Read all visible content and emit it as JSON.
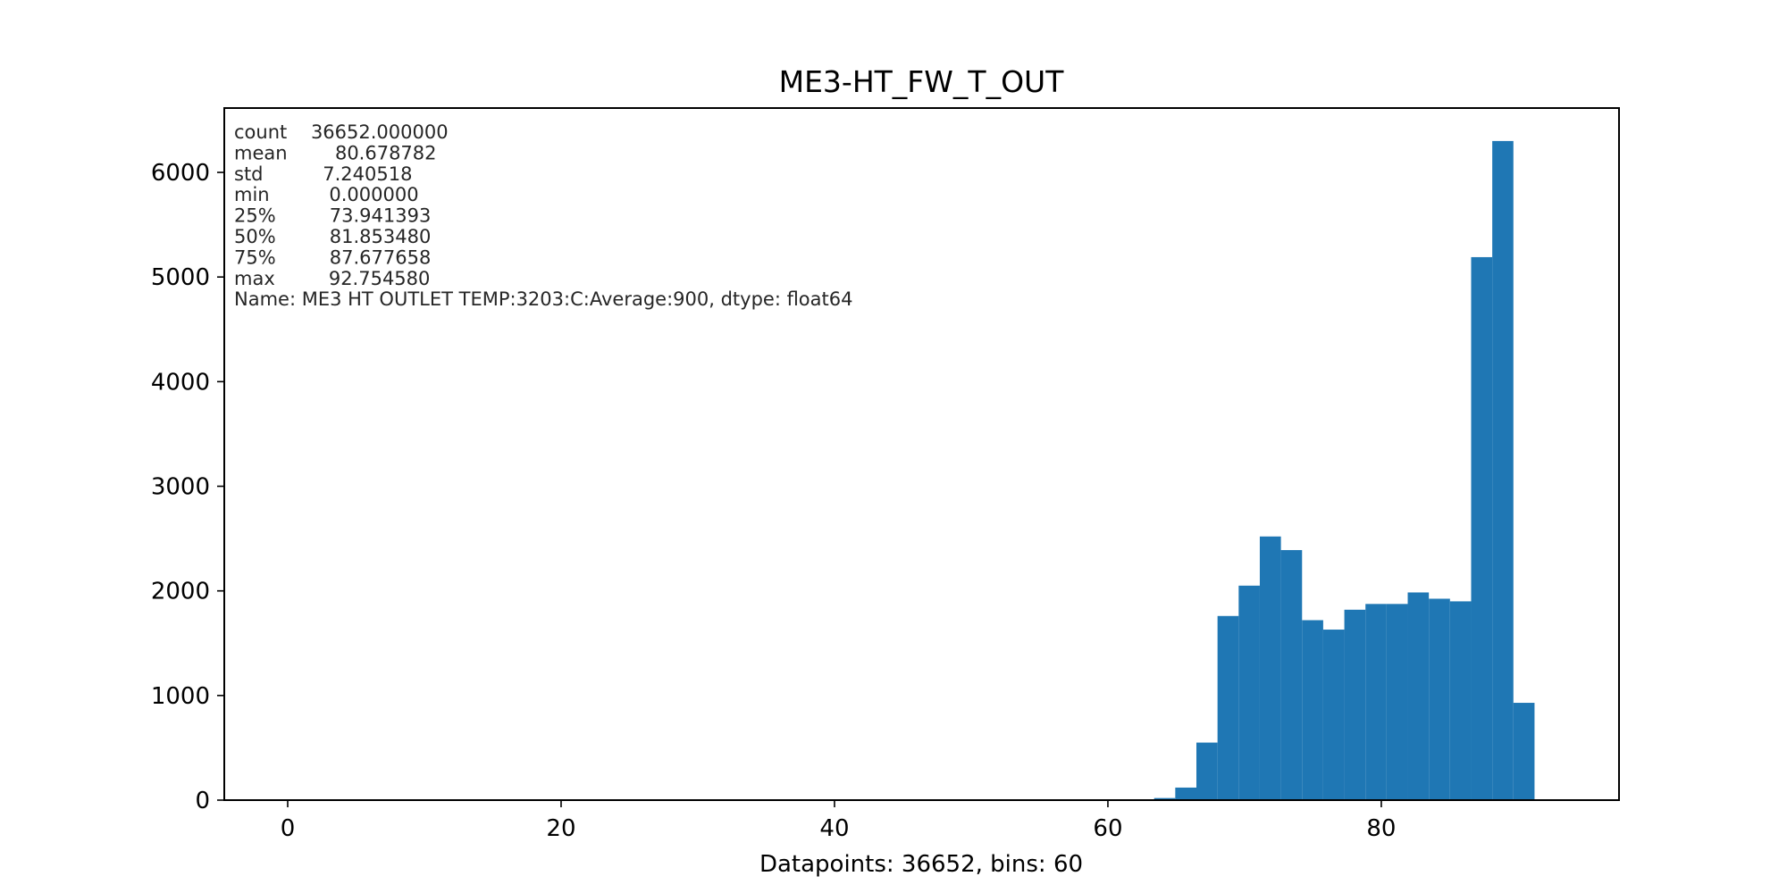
{
  "chart_data": {
    "type": "bar",
    "title": "ME3-HT_FW_T_OUT",
    "xlabel": "Datapoints: 36652, bins: 60",
    "ylabel": "",
    "xlim": [
      -4.64,
      97.39
    ],
    "ylim": [
      0,
      6615
    ],
    "xticks": [
      0,
      20,
      40,
      60,
      80
    ],
    "yticks": [
      0,
      1000,
      2000,
      3000,
      4000,
      5000,
      6000
    ],
    "bin_width": 1.545909667,
    "bins": [
      {
        "x_start": 63.3823,
        "count": 20
      },
      {
        "x_start": 64.9282,
        "count": 120
      },
      {
        "x_start": 66.4741,
        "count": 550
      },
      {
        "x_start": 68.02,
        "count": 1760
      },
      {
        "x_start": 69.5659,
        "count": 2050
      },
      {
        "x_start": 71.1118,
        "count": 2520
      },
      {
        "x_start": 72.6577,
        "count": 2390
      },
      {
        "x_start": 74.2036,
        "count": 1720
      },
      {
        "x_start": 75.7496,
        "count": 1630
      },
      {
        "x_start": 77.2955,
        "count": 1820
      },
      {
        "x_start": 78.8414,
        "count": 1875
      },
      {
        "x_start": 80.3873,
        "count": 1875
      },
      {
        "x_start": 81.9332,
        "count": 1985
      },
      {
        "x_start": 83.4791,
        "count": 1925
      },
      {
        "x_start": 85.025,
        "count": 1900
      },
      {
        "x_start": 86.5709,
        "count": 5190
      },
      {
        "x_start": 88.1168,
        "count": 6300
      },
      {
        "x_start": 89.6628,
        "count": 930
      }
    ],
    "bar_color": "#1f77b4",
    "stats_lines": [
      "count    36652.000000",
      "mean        80.678782",
      "std          7.240518",
      "min          0.000000",
      "25%         73.941393",
      "50%         81.853480",
      "75%         87.677658",
      "max         92.754580",
      "Name: ME3 HT OUTLET TEMP:3203:C:Average:900, dtype: float64"
    ]
  }
}
